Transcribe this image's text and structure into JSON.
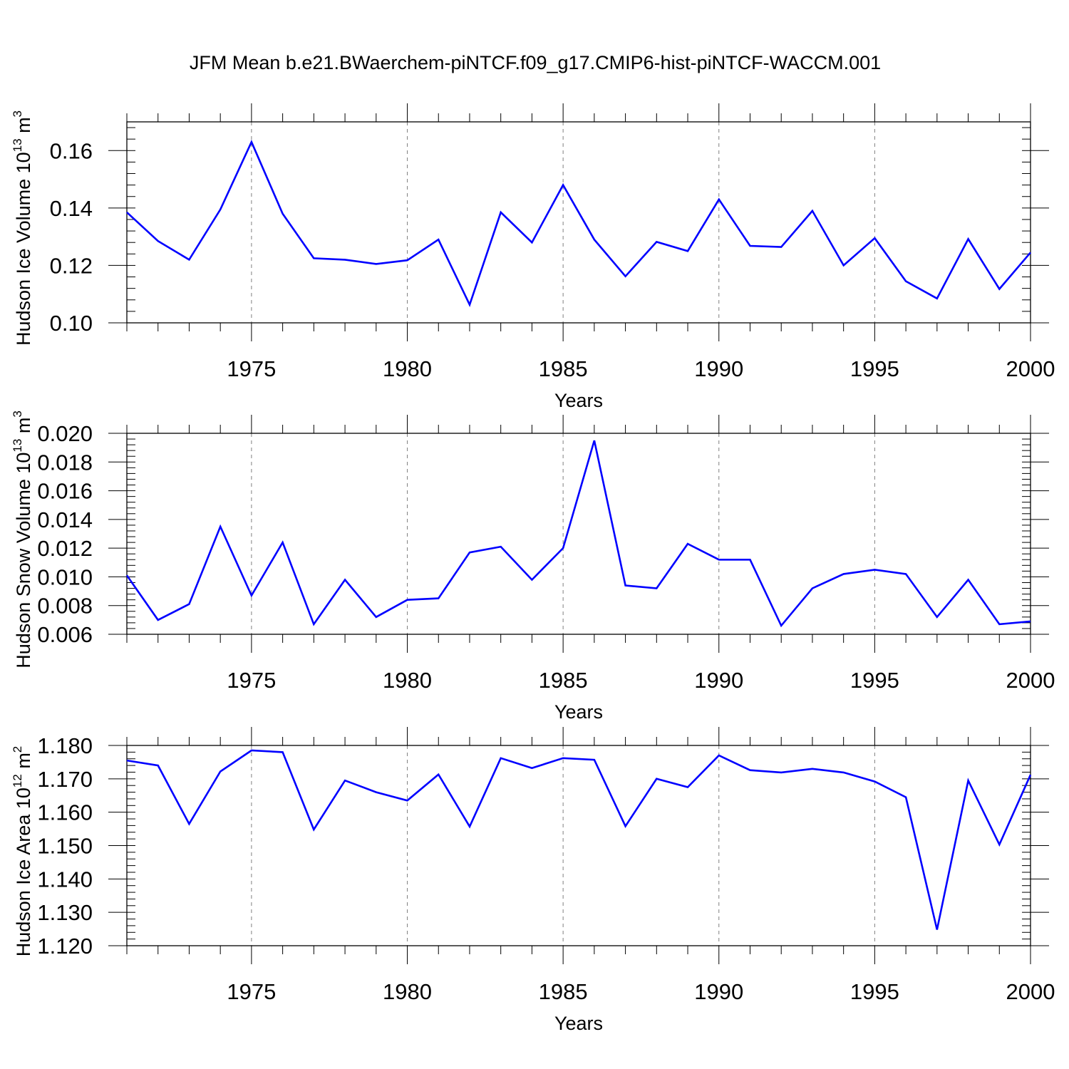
{
  "title": "JFM Mean b.e21.BWaerchem-piNTCF.f09_g17.CMIP6-hist-piNTCF-WACCM.001",
  "colors": {
    "series": "#0000ff",
    "axis": "#000000",
    "grid": "#808080"
  },
  "chart_data": [
    {
      "type": "line",
      "ylabel_main": "Hudson Ice Volume 10",
      "ylabel_exp": "13",
      "ylabel_unit": " m",
      "ylabel_unit_exp": "3",
      "xlabel": "Years",
      "xlim": [
        1971,
        2000
      ],
      "ylim": [
        0.1,
        0.17
      ],
      "yticks": [
        0.1,
        0.12,
        0.14,
        0.16
      ],
      "ytick_labels": [
        "0.10",
        "0.12",
        "0.14",
        "0.16"
      ],
      "xticks": [
        1975,
        1980,
        1985,
        1990,
        1995,
        2000
      ],
      "xtick_labels": [
        "1975",
        "1980",
        "1985",
        "1990",
        "1995",
        "2000"
      ],
      "x": [
        1971,
        1972,
        1973,
        1974,
        1975,
        1976,
        1977,
        1978,
        1979,
        1980,
        1981,
        1982,
        1983,
        1984,
        1985,
        1986,
        1987,
        1988,
        1989,
        1990,
        1991,
        1992,
        1993,
        1994,
        1995,
        1996,
        1997,
        1998,
        1999,
        2000
      ],
      "values": [
        0.1385,
        0.1285,
        0.122,
        0.1395,
        0.163,
        0.138,
        0.1225,
        0.122,
        0.1205,
        0.1218,
        0.129,
        0.1063,
        0.1385,
        0.128,
        0.148,
        0.129,
        0.1162,
        0.1282,
        0.125,
        0.143,
        0.1268,
        0.1264,
        0.139,
        0.12,
        0.1295,
        0.1145,
        0.1085,
        0.1292,
        0.1118,
        0.1245
      ]
    },
    {
      "type": "line",
      "ylabel_main": "Hudson Snow Volume 10",
      "ylabel_exp": "13",
      "ylabel_unit": " m",
      "ylabel_unit_exp": "3",
      "xlabel": "Years",
      "xlim": [
        1971,
        2000
      ],
      "ylim": [
        0.006,
        0.02
      ],
      "yticks": [
        0.006,
        0.008,
        0.01,
        0.012,
        0.014,
        0.016,
        0.018,
        0.02
      ],
      "ytick_labels": [
        "0.006",
        "0.008",
        "0.010",
        "0.012",
        "0.014",
        "0.016",
        "0.018",
        "0.020"
      ],
      "xticks": [
        1975,
        1980,
        1985,
        1990,
        1995,
        2000
      ],
      "xtick_labels": [
        "1975",
        "1980",
        "1985",
        "1990",
        "1995",
        "2000"
      ],
      "x": [
        1971,
        1972,
        1973,
        1974,
        1975,
        1976,
        1977,
        1978,
        1979,
        1980,
        1981,
        1982,
        1983,
        1984,
        1985,
        1986,
        1987,
        1988,
        1989,
        1990,
        1991,
        1992,
        1993,
        1994,
        1995,
        1996,
        1997,
        1998,
        1999,
        2000
      ],
      "values": [
        0.0101,
        0.007,
        0.0081,
        0.0135,
        0.0087,
        0.0124,
        0.0067,
        0.0098,
        0.0072,
        0.0084,
        0.0085,
        0.0117,
        0.0121,
        0.0098,
        0.012,
        0.0195,
        0.0094,
        0.0092,
        0.0123,
        0.0112,
        0.0112,
        0.0066,
        0.0092,
        0.0102,
        0.0105,
        0.0102,
        0.0072,
        0.0098,
        0.0067,
        0.0069
      ]
    },
    {
      "type": "line",
      "ylabel_main": "Hudson Ice Area 10",
      "ylabel_exp": "12",
      "ylabel_unit": " m",
      "ylabel_unit_exp": "2",
      "xlabel": "Years",
      "xlim": [
        1971,
        2000
      ],
      "ylim": [
        1.12,
        1.18
      ],
      "yticks": [
        1.12,
        1.13,
        1.14,
        1.15,
        1.16,
        1.17,
        1.18
      ],
      "ytick_labels": [
        "1.120",
        "1.130",
        "1.140",
        "1.150",
        "1.160",
        "1.170",
        "1.180"
      ],
      "xticks": [
        1975,
        1980,
        1985,
        1990,
        1995,
        2000
      ],
      "xtick_labels": [
        "1975",
        "1980",
        "1985",
        "1990",
        "1995",
        "2000"
      ],
      "x": [
        1971,
        1972,
        1973,
        1974,
        1975,
        1976,
        1977,
        1978,
        1979,
        1980,
        1981,
        1982,
        1983,
        1984,
        1985,
        1986,
        1987,
        1988,
        1989,
        1990,
        1991,
        1992,
        1993,
        1994,
        1995,
        1996,
        1997,
        1998,
        1999,
        2000
      ],
      "values": [
        1.1755,
        1.174,
        1.1565,
        1.1722,
        1.1785,
        1.178,
        1.1548,
        1.1695,
        1.166,
        1.1635,
        1.1713,
        1.1557,
        1.1762,
        1.1732,
        1.1762,
        1.1757,
        1.1558,
        1.17,
        1.1675,
        1.177,
        1.1726,
        1.1719,
        1.173,
        1.1719,
        1.1692,
        1.1645,
        1.1248,
        1.1695,
        1.1503,
        1.1712
      ]
    }
  ]
}
